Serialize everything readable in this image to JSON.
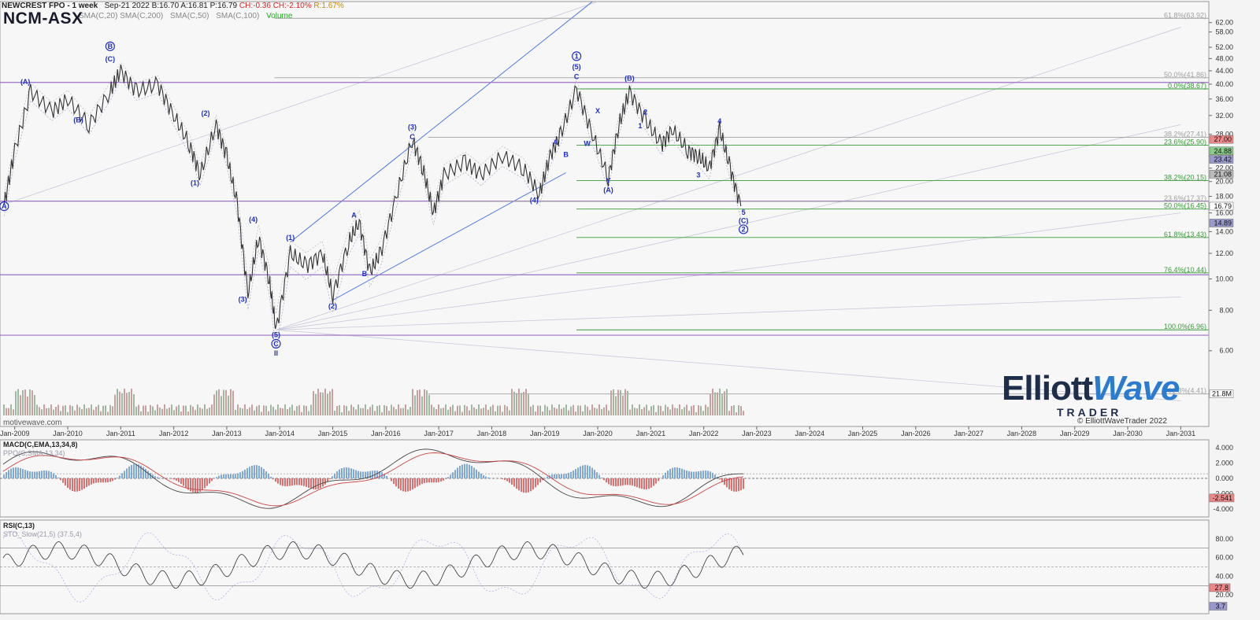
{
  "header": {
    "title": "NEWCREST FPO - 1 week",
    "date": "Sep-21 2022",
    "bid": "B:16.70",
    "ask": "A:16.81",
    "price": "P:16.79",
    "change": "CH:-0.36",
    "change_pct": "CH:-2.10%",
    "range": "R:1.67%",
    "symbol": "NCM-ASX",
    "indicators": [
      "SMA(C,20)",
      "SMA(C,200)",
      "SMA(C,50)",
      "SMA(C,100)",
      "Volume"
    ]
  },
  "watermark": "motivewave.com",
  "logo": {
    "line1a": "Elliott",
    "line1b": "Wave",
    "line2": "TRADER"
  },
  "copyright": "© ElliottWaveTrader 2022",
  "colors": {
    "up_down_bars": "#333333",
    "fib_gray": "#a0a0a0",
    "fib_green": "#3a9a3a",
    "purple": "#9b6fc4",
    "wave_blue": "#1f2fbf",
    "trend_blue": "#3f6fdf",
    "macd_pos": "#7fa8d8",
    "macd_neg": "#e07070"
  },
  "chart_data": {
    "type": "candlestick",
    "x_axis": [
      "Jan-2009",
      "Jan-2010",
      "Jan-2011",
      "Jan-2012",
      "Jan-2013",
      "Jan-2014",
      "Jan-2015",
      "Jan-2016",
      "Jan-2017",
      "Jan-2018",
      "Jan-2019",
      "Jan-2020",
      "Jan-2021",
      "Jan-2022",
      "Jan-2023",
      "Jan-2024",
      "Jan-2025",
      "Jan-2026",
      "Jan-2027",
      "Jan-2028",
      "Jan-2029",
      "Jan-2030",
      "Jan-2031"
    ],
    "price_scale": "log",
    "price_ticks": [
      "62.00",
      "58.00",
      "52.00",
      "48.00",
      "44.00",
      "40.00",
      "36.00",
      "32.00",
      "28.00",
      "24.00",
      "22.00",
      "20.00",
      "18.00",
      "16.00",
      "14.00",
      "12.00",
      "10.00",
      "8.00",
      "6.00"
    ],
    "price_ylim": [
      3.5,
      72
    ],
    "price_path": [
      [
        2008.8,
        17
      ],
      [
        2009.0,
        25
      ],
      [
        2009.3,
        38
      ],
      [
        2009.7,
        33
      ],
      [
        2010.0,
        36
      ],
      [
        2010.4,
        30
      ],
      [
        2010.8,
        38
      ],
      [
        2011.0,
        44
      ],
      [
        2011.3,
        38
      ],
      [
        2011.7,
        40
      ],
      [
        2012.0,
        32
      ],
      [
        2012.3,
        26
      ],
      [
        2012.5,
        21
      ],
      [
        2012.8,
        30
      ],
      [
        2013.0,
        24
      ],
      [
        2013.2,
        17
      ],
      [
        2013.4,
        9
      ],
      [
        2013.6,
        13.5
      ],
      [
        2013.8,
        10
      ],
      [
        2013.93,
        6.96
      ],
      [
        2014.2,
        12
      ],
      [
        2014.5,
        11
      ],
      [
        2014.8,
        12
      ],
      [
        2015.0,
        8.9
      ],
      [
        2015.3,
        13
      ],
      [
        2015.5,
        15
      ],
      [
        2015.7,
        10.5
      ],
      [
        2015.9,
        12
      ],
      [
        2016.2,
        18
      ],
      [
        2016.5,
        27
      ],
      [
        2016.7,
        22
      ],
      [
        2016.9,
        16
      ],
      [
        2017.1,
        21
      ],
      [
        2017.5,
        23
      ],
      [
        2017.8,
        21
      ],
      [
        2018.2,
        24
      ],
      [
        2018.6,
        22
      ],
      [
        2018.9,
        18.3
      ],
      [
        2019.1,
        24
      ],
      [
        2019.3,
        28
      ],
      [
        2019.6,
        38.67
      ],
      [
        2019.9,
        28
      ],
      [
        2020.2,
        20.5
      ],
      [
        2020.4,
        30
      ],
      [
        2020.6,
        38
      ],
      [
        2020.9,
        31
      ],
      [
        2021.2,
        26
      ],
      [
        2021.4,
        29
      ],
      [
        2021.7,
        25
      ],
      [
        2021.9,
        24
      ],
      [
        2022.1,
        22
      ],
      [
        2022.3,
        29
      ],
      [
        2022.5,
        22
      ],
      [
        2022.7,
        16.79
      ]
    ],
    "fib_levels": [
      {
        "label": "61.8%(63.92)",
        "value": 63.92,
        "color": "gray"
      },
      {
        "label": "50.0%(41.86)",
        "value": 41.86,
        "color": "gray"
      },
      {
        "label": "0.0%(38.67)",
        "value": 38.67,
        "color": "green"
      },
      {
        "label": "38.2%(27.41)",
        "value": 27.41,
        "color": "gray"
      },
      {
        "label": "23.6%(25.90)",
        "value": 25.9,
        "color": "green"
      },
      {
        "label": "38.2%(20.15)",
        "value": 20.15,
        "color": "green"
      },
      {
        "label": "23.6%(17.37)",
        "value": 17.37,
        "color": "gray"
      },
      {
        "label": "50.0%(16.45)",
        "value": 16.45,
        "color": "green"
      },
      {
        "label": "61.8%(13.43)",
        "value": 13.43,
        "color": "green"
      },
      {
        "label": "76.4%(10.44)",
        "value": 10.44,
        "color": "green"
      },
      {
        "label": "100.0%(6.96)",
        "value": 6.96,
        "color": "green"
      },
      {
        "label": "61.8%(4.41)",
        "value": 4.41,
        "color": "gray"
      }
    ],
    "price_tags": [
      {
        "label": "27.00",
        "value": 27.0,
        "bg": "#e88"
      },
      {
        "label": "24.88",
        "value": 24.88,
        "bg": "#8c8"
      },
      {
        "label": "23.42",
        "value": 23.42,
        "bg": "#99c"
      },
      {
        "label": "21.08",
        "value": 21.08,
        "bg": "#bbb"
      },
      {
        "label": "16.79",
        "value": 16.79,
        "bg": "#fff"
      },
      {
        "label": "14.89",
        "value": 14.89,
        "bg": "#99c"
      },
      {
        "label": "21.8M",
        "value": 4.41,
        "bg": "#fff"
      }
    ],
    "purple_lines": [
      40.5,
      17.4,
      10.3,
      6.7
    ],
    "wave_labels": [
      {
        "text": "A",
        "t": 2008.8,
        "v": 16.5,
        "circle": true
      },
      {
        "text": "(A)",
        "t": 2009.2,
        "v": 40
      },
      {
        "text": "(B)",
        "t": 2010.2,
        "v": 30.5
      },
      {
        "text": "B",
        "t": 2010.8,
        "v": 51.5,
        "circle": true
      },
      {
        "text": "(C)",
        "t": 2010.8,
        "v": 47
      },
      {
        "text": "(2)",
        "t": 2012.6,
        "v": 32
      },
      {
        "text": "(1)",
        "t": 2012.4,
        "v": 19.5
      },
      {
        "text": "(4)",
        "t": 2013.5,
        "v": 15
      },
      {
        "text": "(3)",
        "t": 2013.3,
        "v": 8.5
      },
      {
        "text": "(5)",
        "t": 2013.93,
        "v": 6.6
      },
      {
        "text": "C",
        "t": 2013.93,
        "v": 6.2,
        "circle": true
      },
      {
        "text": "II",
        "t": 2013.93,
        "v": 5.8
      },
      {
        "text": "(1)",
        "t": 2014.2,
        "v": 13.2
      },
      {
        "text": "(2)",
        "t": 2015.0,
        "v": 8.1
      },
      {
        "text": "A",
        "t": 2015.4,
        "v": 15.5
      },
      {
        "text": "B",
        "t": 2015.6,
        "v": 10.2
      },
      {
        "text": "(3)",
        "t": 2016.5,
        "v": 29
      },
      {
        "text": "C",
        "t": 2016.5,
        "v": 27
      },
      {
        "text": "(4)",
        "t": 2018.8,
        "v": 17.2
      },
      {
        "text": "A",
        "t": 2019.2,
        "v": 26
      },
      {
        "text": "B",
        "t": 2019.4,
        "v": 23.8
      },
      {
        "text": "1",
        "t": 2019.6,
        "v": 48,
        "circle": true
      },
      {
        "text": "(5)",
        "t": 2019.6,
        "v": 44.5
      },
      {
        "text": "C",
        "t": 2019.6,
        "v": 41.5
      },
      {
        "text": "X",
        "t": 2020.0,
        "v": 32.5
      },
      {
        "text": "W",
        "t": 2019.8,
        "v": 25.8
      },
      {
        "text": "Y",
        "t": 2020.2,
        "v": 19.8
      },
      {
        "text": "(A)",
        "t": 2020.2,
        "v": 18.5
      },
      {
        "text": "(B)",
        "t": 2020.6,
        "v": 41
      },
      {
        "text": "2",
        "t": 2020.9,
        "v": 32.2
      },
      {
        "text": "1",
        "t": 2020.8,
        "v": 29.2
      },
      {
        "text": "4",
        "t": 2022.3,
        "v": 30.2
      },
      {
        "text": "3",
        "t": 2021.9,
        "v": 20.6
      },
      {
        "text": "5",
        "t": 2022.75,
        "v": 15.8
      },
      {
        "text": "(C)",
        "t": 2022.75,
        "v": 14.9
      },
      {
        "text": "2",
        "t": 2022.75,
        "v": 14.0,
        "circle": true
      }
    ],
    "macd": {
      "label": "MACD(C,EMA,13,34,8)",
      "sub": "PPO(C,SMA,13,34)",
      "ticks": [
        "4.000",
        "2.000",
        "0.000",
        "-2.000",
        "-4.000"
      ],
      "ylim": [
        -5,
        5
      ],
      "last": "-2.541"
    },
    "rsi": {
      "label": "RSI(C,13)",
      "sub": "STO_Slow(21,5) (37.5,4)",
      "ticks": [
        "80.00",
        "60.00",
        "40.00",
        "20.00"
      ],
      "ylim": [
        0,
        100
      ],
      "last": "27.8",
      "last2": "3.7"
    }
  }
}
